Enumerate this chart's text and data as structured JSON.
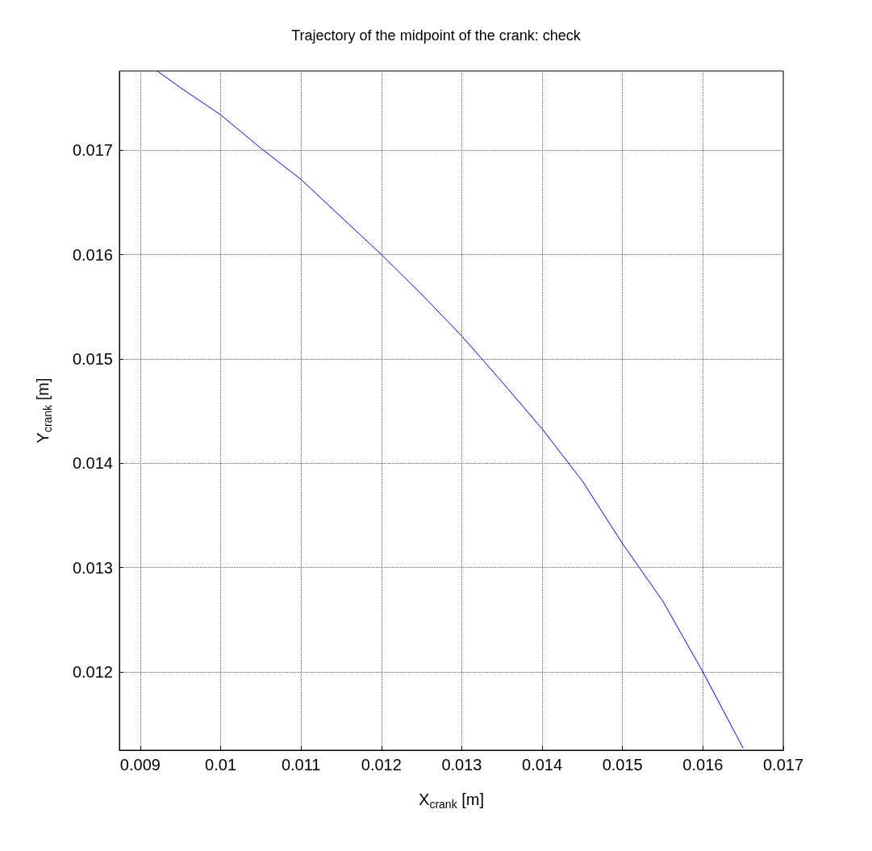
{
  "chart_data": {
    "type": "line",
    "title": "Trajectory of the midpoint of the crank: check",
    "xlabel": "X$_{crank}$ [m]",
    "ylabel": "Y$_{crank}$ [m]",
    "x": [
      0.00921,
      0.0095,
      0.01,
      0.0105,
      0.011,
      0.0115,
      0.012,
      0.0125,
      0.013,
      0.0135,
      0.014,
      0.0145,
      0.015,
      0.0155,
      0.016,
      0.0165
    ],
    "series": [
      {
        "color": "#0000ff",
        "values": [
          0.01776,
          0.0176,
          0.01734,
          0.01702,
          0.01672,
          0.01636,
          0.016,
          0.01562,
          0.01522,
          0.01478,
          0.01433,
          0.01383,
          0.01323,
          0.01268,
          0.012,
          0.01127
        ]
      }
    ],
    "xlim": [
      0.00874,
      0.017
    ],
    "ylim": [
      0.01125,
      0.01776
    ],
    "xticks": [
      0.009,
      0.01,
      0.011,
      0.012,
      0.013,
      0.014,
      0.015,
      0.016,
      0.017
    ],
    "yticks": [
      0.012,
      0.013,
      0.014,
      0.015,
      0.016,
      0.017
    ],
    "grid": true,
    "marker": "none",
    "line_style": "solid"
  }
}
